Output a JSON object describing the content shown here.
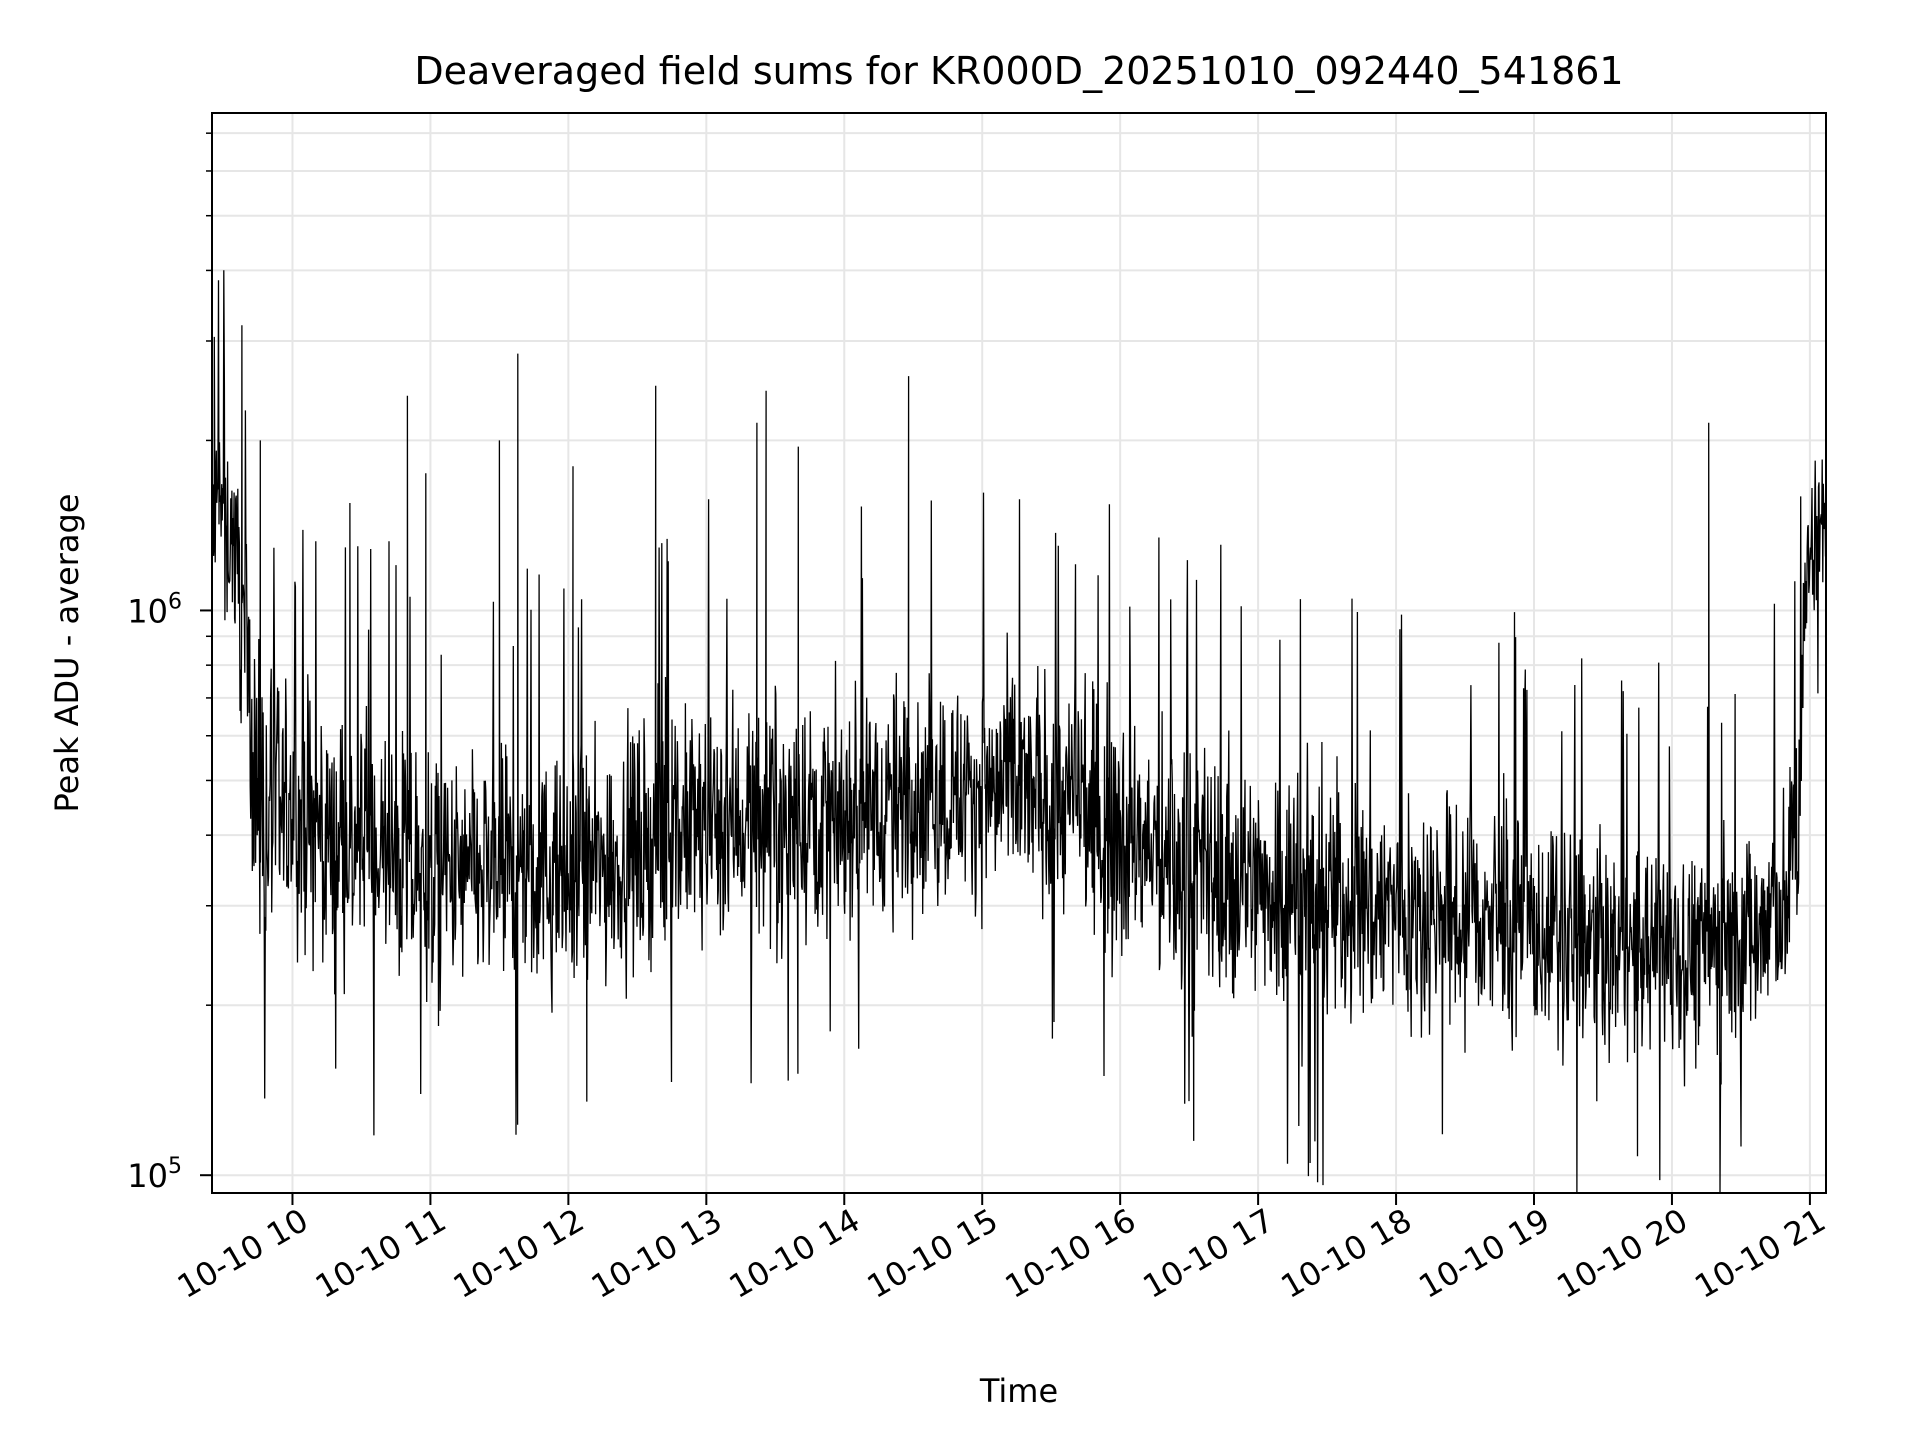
{
  "chart_data": {
    "type": "line",
    "title": "Deaveraged field sums for KR000D_20251010_092440_541861",
    "xlabel": "Time",
    "ylabel": "Peak ADU - average",
    "yscale": "log",
    "ylim": [
      93000,
      7600000
    ],
    "xlim": [
      "2025-10-10 09:25",
      "2025-10-10 21:07"
    ],
    "grid": true,
    "line_color": "#000000",
    "grid_color": "#e6e6e6",
    "x_ticks": [
      {
        "t": "2025-10-10 10:00",
        "label": "10-10 10"
      },
      {
        "t": "2025-10-10 11:00",
        "label": "10-10 11"
      },
      {
        "t": "2025-10-10 12:00",
        "label": "10-10 12"
      },
      {
        "t": "2025-10-10 13:00",
        "label": "10-10 13"
      },
      {
        "t": "2025-10-10 14:00",
        "label": "10-10 14"
      },
      {
        "t": "2025-10-10 15:00",
        "label": "10-10 15"
      },
      {
        "t": "2025-10-10 16:00",
        "label": "10-10 16"
      },
      {
        "t": "2025-10-10 17:00",
        "label": "10-10 17"
      },
      {
        "t": "2025-10-10 18:00",
        "label": "10-10 18"
      },
      {
        "t": "2025-10-10 19:00",
        "label": "10-10 19"
      },
      {
        "t": "2025-10-10 20:00",
        "label": "10-10 20"
      },
      {
        "t": "2025-10-10 21:00",
        "label": "10-10 21"
      }
    ],
    "y_ticks": [
      {
        "value": 100000,
        "base": "10",
        "exp": "5"
      },
      {
        "value": 1000000,
        "base": "10",
        "exp": "6"
      }
    ],
    "series": [
      {
        "x": [
          "2025-10-10 09:25",
          "2025-10-10 09:30",
          "2025-10-10 09:35",
          "2025-10-10 09:40",
          "2025-10-10 09:45",
          "2025-10-10 10:00",
          "2025-10-10 10:30",
          "2025-10-10 11:00",
          "2025-10-10 11:30",
          "2025-10-10 12:00",
          "2025-10-10 12:30",
          "2025-10-10 13:00",
          "2025-10-10 13:30",
          "2025-10-10 14:00",
          "2025-10-10 14:30",
          "2025-10-10 15:00",
          "2025-10-10 15:30",
          "2025-10-10 16:00",
          "2025-10-10 16:30",
          "2025-10-10 17:00",
          "2025-10-10 17:30",
          "2025-10-10 18:00",
          "2025-10-10 18:30",
          "2025-10-10 19:00",
          "2025-10-10 19:30",
          "2025-10-10 20:00",
          "2025-10-10 20:30",
          "2025-10-10 20:50",
          "2025-10-10 20:55",
          "2025-10-10 21:00",
          "2025-10-10 21:07"
        ],
        "y": [
          1400000,
          1500000,
          1300000,
          800000,
          450000,
          420000,
          380000,
          330000,
          340000,
          330000,
          380000,
          420000,
          440000,
          430000,
          470000,
          480000,
          470000,
          400000,
          340000,
          330000,
          310000,
          300000,
          290000,
          270000,
          250000,
          250000,
          260000,
          300000,
          450000,
          1300000,
          1450000
        ],
        "spread_factor": [
          1.7,
          1.7,
          1.7,
          1.8,
          1.8,
          1.8,
          1.75,
          1.75,
          1.75,
          1.75,
          1.75,
          1.75,
          1.7,
          1.7,
          1.7,
          1.7,
          1.7,
          1.75,
          1.8,
          1.8,
          1.8,
          1.8,
          1.75,
          1.7,
          1.65,
          1.65,
          1.7,
          1.7,
          1.8,
          1.45,
          1.4
        ],
        "spikes": [
          {
            "t": "2025-10-10 09:26",
            "y": 3050000
          },
          {
            "t": "2025-10-10 09:38",
            "y": 3200000
          },
          {
            "t": "2025-10-10 09:46",
            "y": 2000000
          },
          {
            "t": "2025-10-10 10:25",
            "y": 1550000
          },
          {
            "t": "2025-10-10 10:50",
            "y": 2400000
          },
          {
            "t": "2025-10-10 10:58",
            "y": 1750000
          },
          {
            "t": "2025-10-10 11:30",
            "y": 2000000
          },
          {
            "t": "2025-10-10 11:38",
            "y": 2850000
          },
          {
            "t": "2025-10-10 12:02",
            "y": 1800000
          },
          {
            "t": "2025-10-10 12:38",
            "y": 2500000
          },
          {
            "t": "2025-10-10 13:22",
            "y": 2150000
          },
          {
            "t": "2025-10-10 13:26",
            "y": 2450000
          },
          {
            "t": "2025-10-10 13:40",
            "y": 1950000
          },
          {
            "t": "2025-10-10 14:28",
            "y": 2600000
          },
          {
            "t": "2025-10-10 20:16",
            "y": 2150000
          },
          {
            "t": "2025-10-10 16:32",
            "y": 115000
          },
          {
            "t": "2025-10-10 19:45",
            "y": 108000
          },
          {
            "t": "2025-10-10 12:08",
            "y": 135000
          }
        ]
      }
    ]
  }
}
